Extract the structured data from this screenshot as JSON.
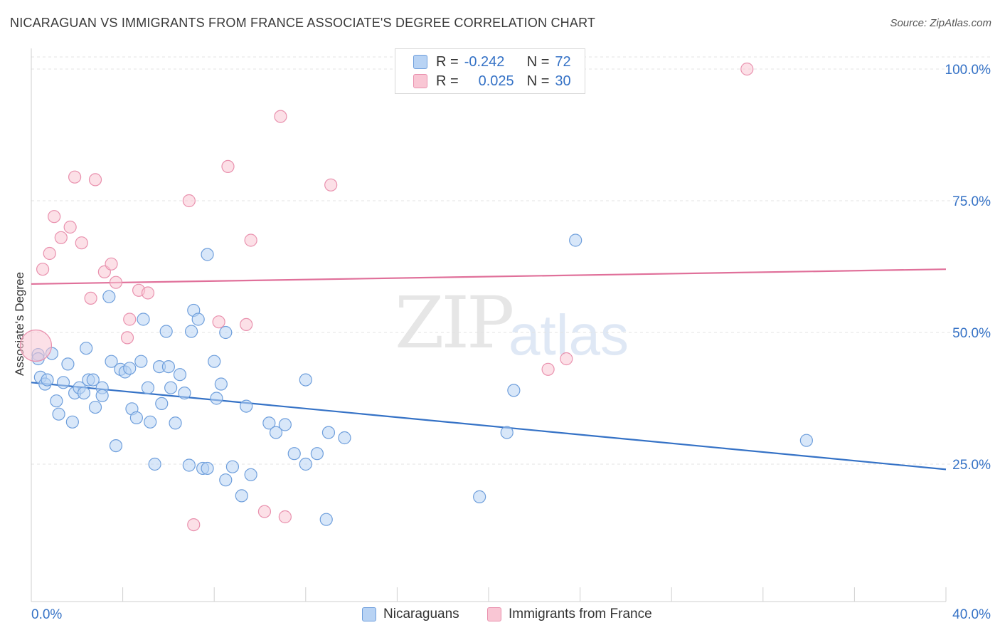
{
  "title": "NICARAGUAN VS IMMIGRANTS FROM FRANCE ASSOCIATE'S DEGREE CORRELATION CHART",
  "source": "Source: ZipAtlas.com",
  "watermark": {
    "zip": "ZIP",
    "atlas": "atlas"
  },
  "legend": {
    "rows": [
      {
        "r_label": "R =",
        "r_value": "-0.242",
        "n_label": "N =",
        "n_value": "72"
      },
      {
        "r_label": "R =",
        "r_value": "0.025",
        "n_label": "N =",
        "n_value": "30"
      }
    ]
  },
  "bottom_legend": {
    "series1": "Nicaraguans",
    "series2": "Immigrants from France"
  },
  "colors": {
    "blue": "#3572c6",
    "blue_fill": "#b8d3f4",
    "pink": "#e0709a",
    "pink_fill": "#f9c6d4"
  },
  "chart_data": {
    "type": "scatter",
    "title": "NICARAGUAN VS IMMIGRANTS FROM FRANCE ASSOCIATE'S DEGREE CORRELATION CHART",
    "xlabel": "",
    "ylabel": "Associate's Degree",
    "xlim": [
      0,
      40
    ],
    "ylim": [
      0,
      105
    ],
    "x_tick_labels": [
      "0.0%",
      "40.0%"
    ],
    "y_ticks": [
      25,
      50,
      75,
      100
    ],
    "y_tick_labels": [
      "25.0%",
      "50.0%",
      "75.0%",
      "100.0%"
    ],
    "series": [
      {
        "name": "Nicaraguans",
        "trend": {
          "x": [
            0,
            40
          ],
          "y": [
            40.5,
            24.0
          ]
        },
        "points": [
          [
            0.3,
            45.8
          ],
          [
            0.3,
            45.0
          ],
          [
            0.4,
            41.5
          ],
          [
            0.6,
            40.2
          ],
          [
            0.7,
            41.0
          ],
          [
            0.9,
            46.0
          ],
          [
            1.1,
            37.0
          ],
          [
            1.2,
            34.5
          ],
          [
            1.4,
            40.5
          ],
          [
            1.6,
            44.0
          ],
          [
            1.8,
            33.0
          ],
          [
            1.9,
            38.5
          ],
          [
            2.1,
            39.5
          ],
          [
            2.3,
            38.5
          ],
          [
            2.4,
            47.0
          ],
          [
            2.5,
            41.0
          ],
          [
            2.7,
            41.0
          ],
          [
            2.8,
            35.8
          ],
          [
            3.1,
            39.5
          ],
          [
            3.1,
            38.0
          ],
          [
            3.4,
            56.8
          ],
          [
            3.5,
            44.5
          ],
          [
            3.7,
            28.5
          ],
          [
            3.9,
            43.0
          ],
          [
            4.1,
            42.5
          ],
          [
            4.3,
            43.2
          ],
          [
            4.4,
            35.5
          ],
          [
            4.6,
            33.8
          ],
          [
            4.8,
            44.5
          ],
          [
            4.9,
            52.5
          ],
          [
            5.1,
            39.5
          ],
          [
            5.2,
            33.0
          ],
          [
            5.4,
            25.0
          ],
          [
            5.6,
            43.5
          ],
          [
            5.7,
            36.5
          ],
          [
            5.9,
            50.2
          ],
          [
            6.0,
            43.5
          ],
          [
            6.1,
            39.5
          ],
          [
            6.3,
            32.8
          ],
          [
            6.5,
            42.0
          ],
          [
            6.7,
            38.5
          ],
          [
            6.9,
            24.8
          ],
          [
            7.0,
            50.2
          ],
          [
            7.1,
            54.2
          ],
          [
            7.3,
            52.5
          ],
          [
            7.5,
            24.2
          ],
          [
            7.7,
            24.2
          ],
          [
            7.7,
            64.8
          ],
          [
            8.0,
            44.5
          ],
          [
            8.1,
            37.5
          ],
          [
            8.3,
            40.2
          ],
          [
            8.5,
            22.0
          ],
          [
            8.5,
            50.0
          ],
          [
            8.8,
            24.5
          ],
          [
            9.2,
            19.0
          ],
          [
            9.4,
            36.0
          ],
          [
            9.6,
            23.0
          ],
          [
            10.4,
            32.8
          ],
          [
            10.7,
            31.0
          ],
          [
            11.1,
            32.5
          ],
          [
            11.5,
            27.0
          ],
          [
            12.0,
            25.0
          ],
          [
            12.0,
            41.0
          ],
          [
            12.5,
            27.0
          ],
          [
            12.9,
            14.5
          ],
          [
            13.0,
            31.0
          ],
          [
            13.7,
            30.0
          ],
          [
            19.6,
            18.8
          ],
          [
            20.8,
            31.0
          ],
          [
            21.1,
            39.0
          ],
          [
            23.8,
            67.5
          ],
          [
            33.9,
            29.5
          ]
        ]
      },
      {
        "name": "Immigrants from France",
        "trend": {
          "x": [
            0,
            40
          ],
          "y": [
            59.2,
            62.0
          ]
        },
        "points": [
          [
            0.2,
            47.5
          ],
          [
            0.5,
            62.0
          ],
          [
            0.8,
            65.0
          ],
          [
            1.0,
            72.0
          ],
          [
            1.3,
            68.0
          ],
          [
            1.7,
            70.0
          ],
          [
            1.9,
            79.5
          ],
          [
            2.2,
            67.0
          ],
          [
            2.6,
            56.5
          ],
          [
            2.8,
            79.0
          ],
          [
            3.2,
            61.5
          ],
          [
            3.5,
            63.0
          ],
          [
            3.7,
            59.5
          ],
          [
            4.2,
            49.0
          ],
          [
            4.3,
            52.5
          ],
          [
            4.7,
            58.0
          ],
          [
            5.1,
            57.5
          ],
          [
            6.9,
            75.0
          ],
          [
            7.1,
            13.5
          ],
          [
            8.2,
            52.0
          ],
          [
            8.6,
            81.5
          ],
          [
            9.4,
            51.5
          ],
          [
            9.6,
            67.5
          ],
          [
            10.2,
            16.0
          ],
          [
            10.9,
            91.0
          ],
          [
            11.1,
            15.0
          ],
          [
            13.1,
            78.0
          ],
          [
            22.6,
            43.0
          ],
          [
            23.4,
            45.0
          ],
          [
            31.3,
            100.0
          ]
        ]
      }
    ]
  }
}
